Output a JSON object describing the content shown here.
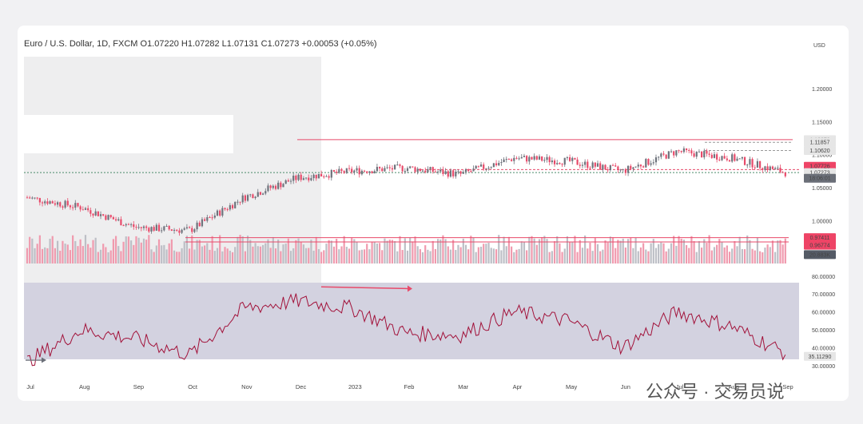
{
  "chart_data": {
    "type": "candlestick",
    "title": {
      "symbol": "Euro / U.S. Dollar, 1D, FXCM",
      "o_label": "O",
      "o": "1.07220",
      "h_label": "H",
      "h": "1.07282",
      "l_label": "L",
      "l": "1.07131",
      "c_label": "C",
      "c": "1.07273",
      "change": "+0.00053 (+0.05%)"
    },
    "currency": "USD",
    "x_months": [
      "Jul",
      "Aug",
      "Sep",
      "Oct",
      "Nov",
      "Dec",
      "2023",
      "Feb",
      "Mar",
      "Apr",
      "May",
      "Jun",
      "Jul",
      "Aug",
      "Sep"
    ],
    "price_ticks": [
      "1.20000",
      "1.15000",
      "1.10000",
      "1.05000",
      "1.00000"
    ],
    "price_ylim": [
      0.935,
      1.235
    ],
    "price_badges": [
      {
        "text": "1.12270",
        "bg": "#e6e6e6",
        "fg": "#222"
      },
      {
        "text": "1.11857",
        "bg": "#e6e6e6",
        "fg": "#222"
      },
      {
        "text": "1.10620",
        "bg": "#e6e6e6",
        "fg": "#222"
      },
      {
        "text": "1.07726",
        "bg": "#ee4466",
        "fg": "#ffffff"
      },
      {
        "text": "1.07273",
        "bg": "#e6e6e6",
        "fg": "#222"
      },
      {
        "text": "18:06:01",
        "bg": "#6b6f78",
        "fg": "#ffffff"
      },
      {
        "text": "0.97411",
        "bg": "#ee4466",
        "fg": "#ffffff"
      },
      {
        "text": "0.96774",
        "bg": "#ee4466",
        "fg": "#ffffff"
      },
      {
        "text": "20.883K",
        "bg": "#555b66",
        "fg": "#ffffff"
      }
    ],
    "rsi_ticks": [
      "80.00000",
      "70.00000",
      "60.00000",
      "50.00000",
      "40.00000",
      "30.00000"
    ],
    "rsi_ylim": [
      29,
      79
    ],
    "rsi_current": "35.11290",
    "monthly_price": [
      [
        "Jul",
        1.035
      ],
      [
        "Aug",
        1.02
      ],
      [
        "Sep",
        0.99
      ],
      [
        "Oct",
        0.985
      ],
      [
        "Nov",
        1.035
      ],
      [
        "Dec",
        1.065
      ],
      [
        "2023",
        1.075
      ],
      [
        "Feb",
        1.08
      ],
      [
        "Mar",
        1.07
      ],
      [
        "Apr",
        1.095
      ],
      [
        "May",
        1.09
      ],
      [
        "Jun",
        1.075
      ],
      [
        "Jul",
        1.105
      ],
      [
        "Aug",
        1.095
      ],
      [
        "Sep",
        1.073
      ]
    ],
    "monthly_rsi": [
      [
        "Jul",
        32
      ],
      [
        "Aug",
        50
      ],
      [
        "Sep",
        45
      ],
      [
        "Oct",
        36
      ],
      [
        "Nov",
        62
      ],
      [
        "Dec",
        66
      ],
      [
        "2023",
        62
      ],
      [
        "Feb",
        48
      ],
      [
        "Mar",
        47
      ],
      [
        "Apr",
        60
      ],
      [
        "May",
        55
      ],
      [
        "Jun",
        40
      ],
      [
        "Jul",
        60
      ],
      [
        "Aug",
        52
      ],
      [
        "Sep",
        37
      ]
    ],
    "colors": {
      "up": "#6e737c",
      "down": "#e84a6a",
      "volume_up": "#bdbfc6",
      "volume_down": "#f09aae",
      "rsi_line": "#a2123a",
      "rsi_band": "#d3d2e0",
      "accent": "#e84a6a"
    }
  },
  "watermark": "公众号 · 交易员说"
}
